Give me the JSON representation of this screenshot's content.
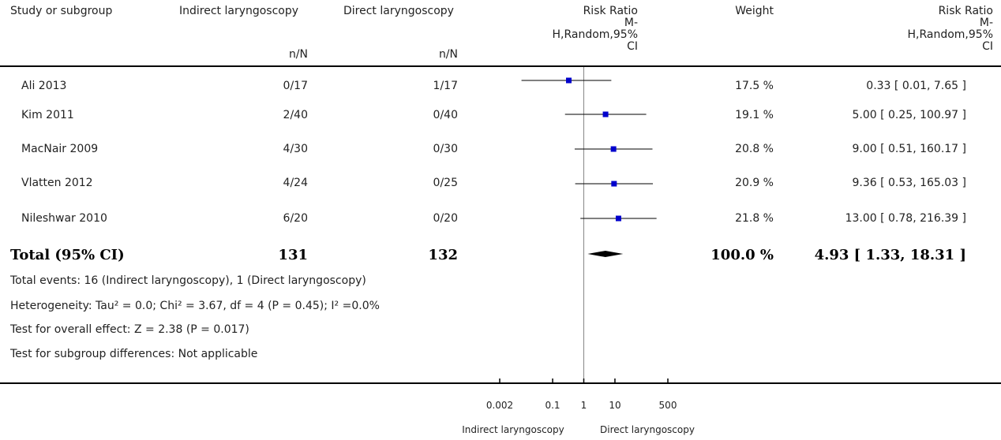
{
  "header": {
    "study": "Study or subgroup",
    "group1": "Indirect laryngoscopy",
    "group2": "Direct laryngoscopy",
    "n1": "n/N",
    "n2": "n/N",
    "rr_plot": [
      "Risk Ratio",
      "M-",
      "H,Random,95%",
      "CI"
    ],
    "weight": "Weight",
    "rr_text": [
      "Risk Ratio",
      "M-",
      "H,Random,95%",
      "CI"
    ]
  },
  "rows": [
    {
      "study": "Ali 2013",
      "n1": "0/17",
      "n2": "1/17",
      "weight": "17.5 %",
      "ci": "0.33 [ 0.01, 7.65 ]"
    },
    {
      "study": "Kim 2011",
      "n1": "2/40",
      "n2": "0/40",
      "weight": "19.1 %",
      "ci": "5.00 [ 0.25, 100.97 ]"
    },
    {
      "study": "MacNair 2009",
      "n1": "4/30",
      "n2": "0/30",
      "weight": "20.8 %",
      "ci": "9.00 [ 0.51, 160.17 ]"
    },
    {
      "study": "Vlatten 2012",
      "n1": "4/24",
      "n2": "0/25",
      "weight": "20.9 %",
      "ci": "9.36 [ 0.53, 165.03 ]"
    },
    {
      "study": "Nileshwar 2010",
      "n1": "6/20",
      "n2": "0/20",
      "weight": "21.8 %",
      "ci": "13.00 [ 0.78, 216.39 ]"
    }
  ],
  "total": {
    "label": "Total (95% CI)",
    "n1": "131",
    "n2": "132",
    "weight": "100.0 %",
    "ci": "4.93 [ 1.33, 18.31 ]"
  },
  "notes": [
    "Total events: 16 (Indirect laryngoscopy), 1 (Direct laryngoscopy)",
    "Heterogeneity: Tau² = 0.0; Chi² = 3.67, df = 4 (P = 0.45); I² =0.0%",
    "Test for overall effect: Z = 2.38 (P = 0.017)",
    "Test for subgroup differences: Not applicable"
  ],
  "axis": {
    "ticks": [
      "0.002",
      "0.1",
      "1",
      "10",
      "500"
    ],
    "left_label": "Indirect laryngoscopy",
    "right_label": "Direct laryngoscopy"
  },
  "colors": {
    "marker": "#0000cc",
    "line": "#000000",
    "ref_line": "#888888"
  },
  "chart_data": {
    "type": "forest",
    "scale": "log",
    "xlim": [
      0.002,
      500
    ],
    "ticks": [
      0.002,
      0.1,
      1,
      10,
      500
    ],
    "reference_line": 1,
    "studies": [
      {
        "name": "Ali 2013",
        "rr": 0.33,
        "lo": 0.01,
        "hi": 7.65,
        "weight": 17.5
      },
      {
        "name": "Kim 2011",
        "rr": 5.0,
        "lo": 0.25,
        "hi": 100.97,
        "weight": 19.1
      },
      {
        "name": "MacNair 2009",
        "rr": 9.0,
        "lo": 0.51,
        "hi": 160.17,
        "weight": 20.8
      },
      {
        "name": "Vlatten 2012",
        "rr": 9.36,
        "lo": 0.53,
        "hi": 165.03,
        "weight": 20.9
      },
      {
        "name": "Nileshwar 2010",
        "rr": 13.0,
        "lo": 0.78,
        "hi": 216.39,
        "weight": 21.8
      }
    ],
    "pooled": {
      "rr": 4.93,
      "lo": 1.33,
      "hi": 18.31,
      "weight": 100.0
    }
  }
}
